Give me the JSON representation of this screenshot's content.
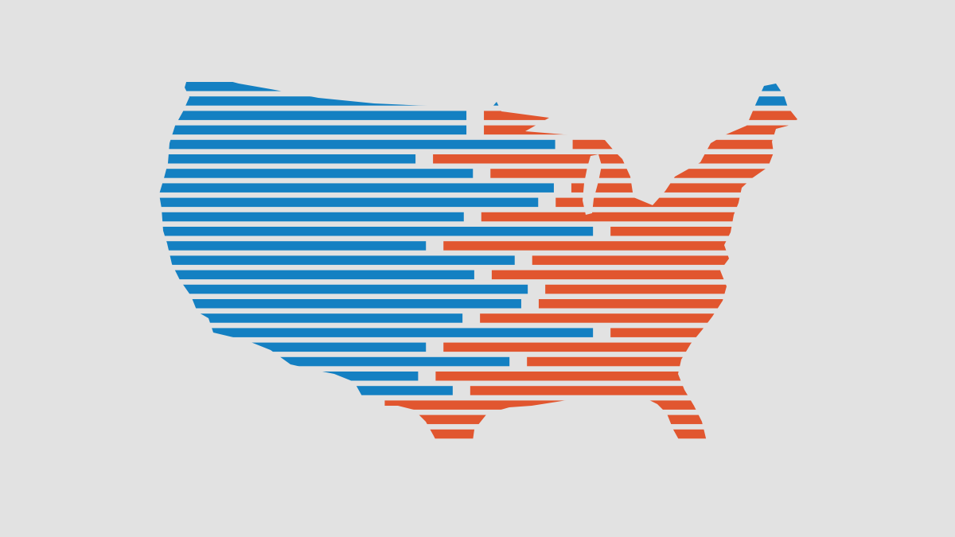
{
  "colors": {
    "background": "#e2e2e2",
    "left": "#1480c2",
    "right": "#e1562f"
  },
  "illustration": {
    "left_color_name": "blue",
    "right_color_name": "orange-red",
    "divide_shares": [
      0.483,
      0.483,
      0.619,
      0.405,
      0.493,
      0.617,
      0.593,
      0.479,
      0.677,
      0.421,
      0.557,
      0.495,
      0.577,
      0.567,
      0.477,
      0.677,
      0.421,
      0.549,
      0.409,
      0.462,
      0.331,
      0.217,
      0.075
    ]
  }
}
